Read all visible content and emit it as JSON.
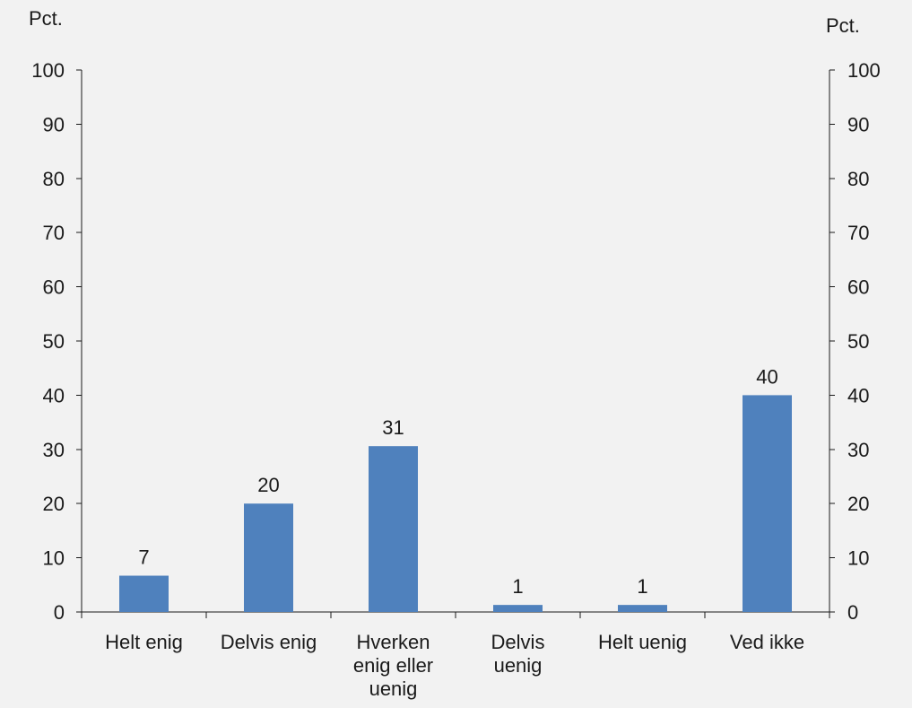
{
  "chart_data": {
    "type": "bar",
    "categories": [
      [
        "Helt enig"
      ],
      [
        "Delvis enig"
      ],
      [
        "Hverken",
        "enig eller",
        "uenig"
      ],
      [
        "Delvis",
        "uenig"
      ],
      [
        "Helt uenig"
      ],
      [
        "Ved ikke"
      ]
    ],
    "values": [
      6.7,
      20,
      30.6,
      1.3,
      1.3,
      40
    ],
    "data_labels": [
      "7",
      "20",
      "31",
      "1",
      "1",
      "40"
    ],
    "ylabel_left": "Pct.",
    "ylabel_right": "Pct.",
    "ylim": [
      0,
      100
    ],
    "yticks": [
      0,
      10,
      20,
      30,
      40,
      50,
      60,
      70,
      80,
      90,
      100
    ],
    "bar_color": "#4f81bd",
    "background": "#f2f2f2",
    "grid": false,
    "legend": "none"
  }
}
